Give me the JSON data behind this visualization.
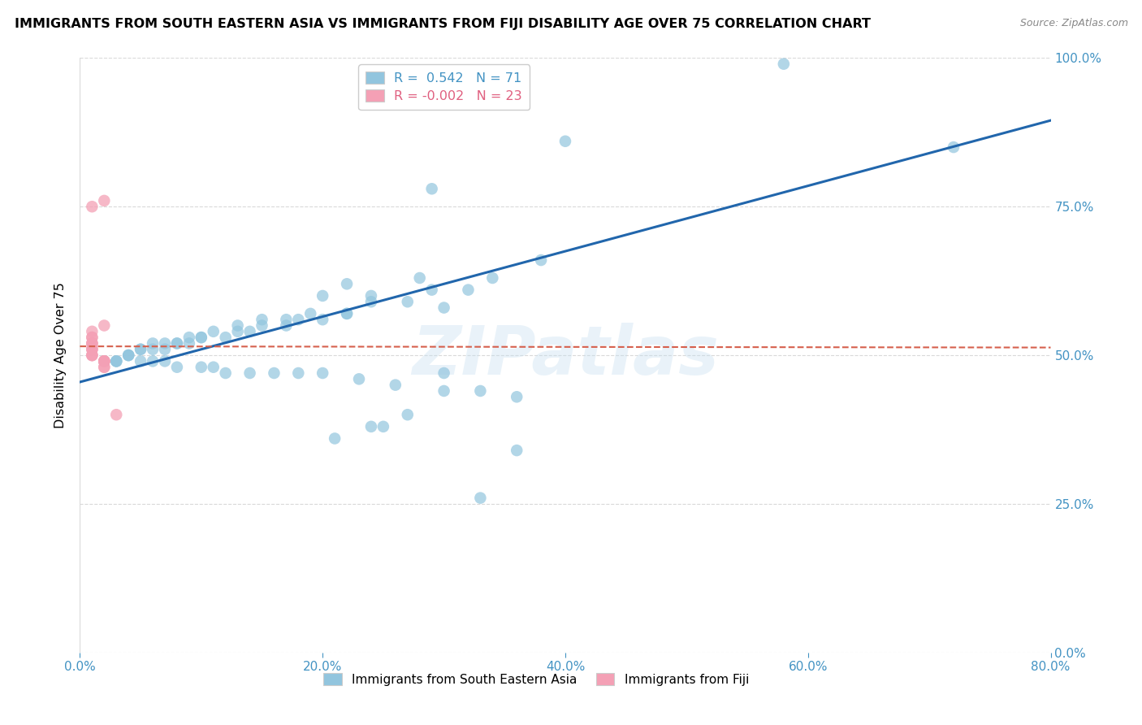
{
  "title": "IMMIGRANTS FROM SOUTH EASTERN ASIA VS IMMIGRANTS FROM FIJI DISABILITY AGE OVER 75 CORRELATION CHART",
  "source": "Source: ZipAtlas.com",
  "ylabel": "Disability Age Over 75",
  "xlim": [
    0.0,
    0.8
  ],
  "ylim": [
    0.0,
    1.0
  ],
  "r_blue": 0.542,
  "n_blue": 71,
  "r_pink": -0.002,
  "n_pink": 23,
  "watermark": "ZIPatlas",
  "legend_blue": "Immigrants from South Eastern Asia",
  "legend_pink": "Immigrants from Fiji",
  "blue_color": "#92c5de",
  "pink_color": "#f4a0b5",
  "trend_blue_color": "#2166ac",
  "trend_pink_color": "#d6604d",
  "axis_color": "#4393c3",
  "grid_color": "#d9d9d9",
  "blue_scatter_x": [
    0.58,
    0.72,
    0.4,
    0.29,
    0.38,
    0.34,
    0.28,
    0.22,
    0.29,
    0.32,
    0.2,
    0.24,
    0.24,
    0.27,
    0.3,
    0.22,
    0.19,
    0.22,
    0.2,
    0.17,
    0.15,
    0.18,
    0.17,
    0.15,
    0.13,
    0.14,
    0.11,
    0.13,
    0.1,
    0.12,
    0.1,
    0.09,
    0.08,
    0.09,
    0.07,
    0.08,
    0.06,
    0.07,
    0.05,
    0.06,
    0.05,
    0.04,
    0.04,
    0.04,
    0.03,
    0.03,
    0.03,
    0.02,
    0.05,
    0.06,
    0.07,
    0.08,
    0.1,
    0.11,
    0.12,
    0.14,
    0.16,
    0.18,
    0.2,
    0.23,
    0.26,
    0.3,
    0.33,
    0.36,
    0.3,
    0.27,
    0.24,
    0.21,
    0.36,
    0.25,
    0.33
  ],
  "blue_scatter_y": [
    0.99,
    0.85,
    0.86,
    0.78,
    0.66,
    0.63,
    0.63,
    0.62,
    0.61,
    0.61,
    0.6,
    0.6,
    0.59,
    0.59,
    0.58,
    0.57,
    0.57,
    0.57,
    0.56,
    0.56,
    0.56,
    0.56,
    0.55,
    0.55,
    0.55,
    0.54,
    0.54,
    0.54,
    0.53,
    0.53,
    0.53,
    0.53,
    0.52,
    0.52,
    0.52,
    0.52,
    0.52,
    0.51,
    0.51,
    0.51,
    0.51,
    0.5,
    0.5,
    0.5,
    0.49,
    0.49,
    0.49,
    0.49,
    0.49,
    0.49,
    0.49,
    0.48,
    0.48,
    0.48,
    0.47,
    0.47,
    0.47,
    0.47,
    0.47,
    0.46,
    0.45,
    0.44,
    0.44,
    0.43,
    0.47,
    0.4,
    0.38,
    0.36,
    0.34,
    0.38,
    0.26
  ],
  "pink_scatter_x": [
    0.01,
    0.01,
    0.01,
    0.01,
    0.01,
    0.01,
    0.01,
    0.01,
    0.01,
    0.01,
    0.01,
    0.01,
    0.02,
    0.02,
    0.02,
    0.02,
    0.02,
    0.02,
    0.02,
    0.02,
    0.02,
    0.03,
    0.01
  ],
  "pink_scatter_y": [
    0.54,
    0.53,
    0.53,
    0.52,
    0.52,
    0.52,
    0.51,
    0.51,
    0.51,
    0.5,
    0.5,
    0.5,
    0.49,
    0.49,
    0.49,
    0.49,
    0.49,
    0.48,
    0.48,
    0.55,
    0.76,
    0.4,
    0.75
  ],
  "blue_trend_x": [
    0.0,
    0.8
  ],
  "blue_trend_y": [
    0.455,
    0.895
  ],
  "pink_trend_x": [
    0.0,
    0.8
  ],
  "pink_trend_y": [
    0.515,
    0.513
  ],
  "ytick_vals": [
    0.0,
    0.25,
    0.5,
    0.75,
    1.0
  ],
  "ytick_labels": [
    "0.0%",
    "25.0%",
    "50.0%",
    "75.0%",
    "100.0%"
  ],
  "xtick_vals": [
    0.0,
    0.2,
    0.4,
    0.6,
    0.8
  ],
  "xtick_labels": [
    "0.0%",
    "20.0%",
    "40.0%",
    "60.0%",
    "80.0%"
  ]
}
